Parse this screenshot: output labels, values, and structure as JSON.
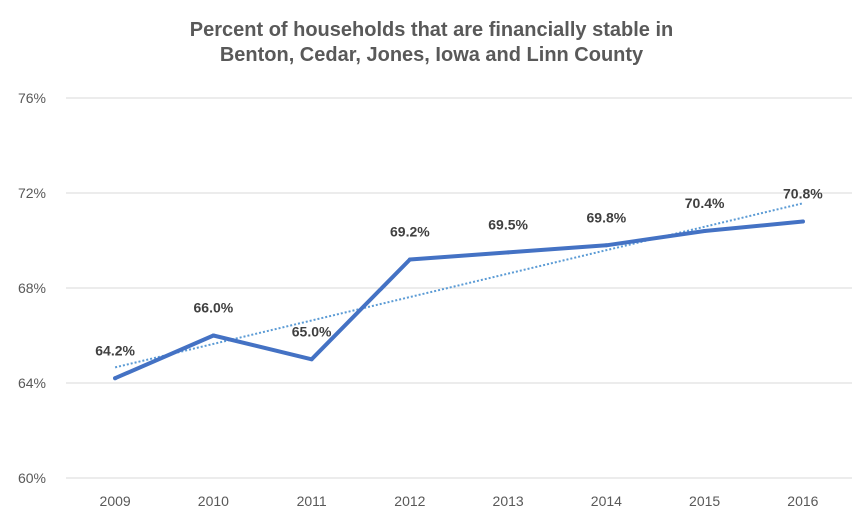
{
  "title_line1": "Percent of  households that are financially  stable in",
  "title_line2": "Benton, Cedar, Jones, Iowa and Linn County",
  "colors": {
    "series": "#4472C4",
    "trendline": "#5B9BD5",
    "grid": "#D9D9D9",
    "axis_text": "#595959",
    "label_text": "#404040"
  },
  "chart_data": {
    "type": "line",
    "title": "Percent of households that are financially stable in Benton, Cedar, Jones, Iowa and Linn County",
    "xlabel": "",
    "ylabel": "",
    "x": [
      "2009",
      "2010",
      "2011",
      "2012",
      "2013",
      "2014",
      "2015",
      "2016"
    ],
    "series": [
      {
        "values": [
          64.2,
          66.0,
          65.0,
          69.2,
          69.5,
          69.8,
          70.4,
          70.8
        ],
        "labels": [
          "64.2%",
          "66.0%",
          "65.0%",
          "69.2%",
          "69.5%",
          "69.8%",
          "70.4%",
          "70.8%"
        ]
      }
    ],
    "trendline": {
      "type": "linear",
      "style": "dotted"
    },
    "ylim": [
      60,
      76
    ],
    "yticks": [
      60,
      64,
      68,
      72,
      76
    ],
    "ytick_labels": [
      "60%",
      "64%",
      "68%",
      "72%",
      "76%"
    ],
    "grid": true,
    "legend": "none"
  }
}
